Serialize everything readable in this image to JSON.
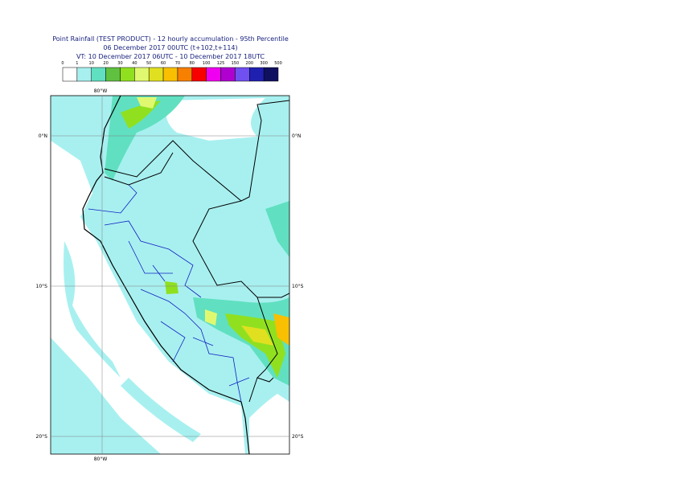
{
  "header": {
    "title": "Point Rainfall (TEST PRODUCT) - 12 hourly accumulation - 95th Percentile",
    "subtitle": "06 December 2017 00UTC (t+102,t+114)",
    "validity": "VT: 10 December 2017 06UTC - 10 December 2017 18UTC"
  },
  "legend": {
    "thresholds": [
      0,
      1,
      10,
      20,
      30,
      40,
      50,
      60,
      70,
      80,
      100,
      125,
      150,
      200,
      300,
      500
    ],
    "colors": [
      "#ffffff",
      "#a8f0f0",
      "#60e0c0",
      "#60c040",
      "#90e020",
      "#e0f870",
      "#e0e020",
      "#f8c000",
      "#f88000",
      "#f80000",
      "#f000f0",
      "#b000d0",
      "#7050f0",
      "#2020b0",
      "#101060"
    ]
  },
  "map": {
    "lon_ticks": [
      {
        "value": -80,
        "label": "80°W"
      }
    ],
    "lat_ticks": [
      {
        "value": 0,
        "label": "0°N"
      },
      {
        "value": -10,
        "label": "10°S"
      },
      {
        "value": -20,
        "label": "20°S"
      }
    ]
  }
}
